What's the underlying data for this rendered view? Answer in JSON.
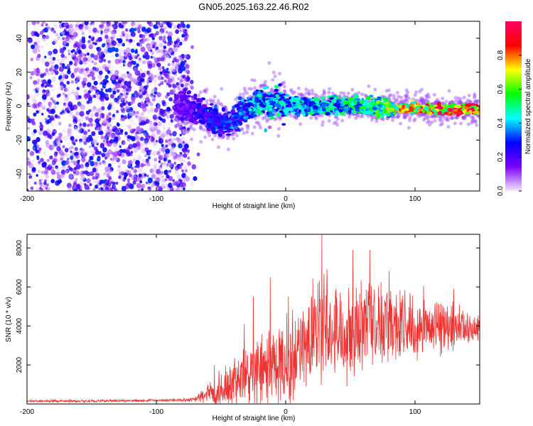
{
  "title": "GN05.2025.163.22.46.R02",
  "chart_data": [
    {
      "type": "heatmap",
      "xlabel": "Height of straight line (km)",
      "ylabel": "Frequency (Hz)",
      "xlim": [
        -200,
        150
      ],
      "ylim": [
        -50,
        50
      ],
      "xticks": [
        -200,
        -100,
        0,
        100
      ],
      "yticks": [
        -40,
        -20,
        0,
        20,
        40
      ],
      "colorbar": {
        "label": "Normalized spectral amplitude",
        "range": [
          0,
          1
        ],
        "ticks": [
          0.0,
          0.2,
          0.4,
          0.6,
          0.8
        ],
        "tick_labels": [
          "0.0",
          "0.2",
          "0.4",
          "0.6",
          "0.8"
        ],
        "colors": [
          "#f2e6ff",
          "#7a00ff",
          "#0000ff",
          "#00ffff",
          "#00ff00",
          "#ffff00",
          "#ff0000",
          "#ff0066"
        ]
      },
      "noise_region": {
        "x": [
          -200,
          -75
        ],
        "y": [
          -50,
          50
        ],
        "amplitude": 0.25
      },
      "ridge": {
        "x": [
          -85,
          -75,
          -65,
          -55,
          -48,
          -42,
          -35,
          -28,
          -20,
          -10,
          0,
          10,
          20,
          40,
          60,
          80,
          100,
          120,
          140,
          150
        ],
        "freq": [
          0,
          -1,
          -4,
          -8,
          -10,
          -9,
          -4,
          0,
          3,
          2,
          1,
          0,
          0,
          0,
          0,
          -1,
          -1,
          -2,
          -2,
          -2
        ],
        "amplitude": [
          0.15,
          0.2,
          0.25,
          0.28,
          0.3,
          0.3,
          0.32,
          0.38,
          0.42,
          0.42,
          0.4,
          0.4,
          0.42,
          0.45,
          0.48,
          0.6,
          0.75,
          0.85,
          0.95,
          0.95
        ]
      }
    },
    {
      "type": "line",
      "xlabel": "Height of straight line (km)",
      "ylabel": "SNR (10 * v/v)",
      "xlim": [
        -200,
        150
      ],
      "ylim": [
        0,
        8700
      ],
      "xticks": [
        -200,
        -100,
        0,
        100
      ],
      "yticks": [
        2000,
        4000,
        6000,
        8000
      ],
      "color": "#ee3333",
      "envelope": {
        "x": [
          -200,
          -150,
          -100,
          -80,
          -70,
          -60,
          -50,
          -40,
          -30,
          -20,
          -10,
          0,
          10,
          20,
          25,
          30,
          40,
          50,
          60,
          70,
          80,
          100,
          120,
          140,
          150
        ],
        "mean": [
          150,
          150,
          180,
          200,
          250,
          500,
          800,
          1100,
          1400,
          1600,
          1800,
          2200,
          2600,
          3400,
          3700,
          3900,
          3900,
          3900,
          4100,
          4300,
          4200,
          4100,
          4000,
          3900,
          3800
        ],
        "spread": [
          100,
          100,
          100,
          100,
          200,
          900,
          1500,
          2000,
          2400,
          2600,
          2900,
          3300,
          3400,
          3500,
          3800,
          3700,
          3500,
          3400,
          3400,
          3300,
          3000,
          2400,
          1800,
          1300,
          1000
        ]
      },
      "peaks": [
        {
          "x": -55,
          "y": 2000
        },
        {
          "x": -32,
          "y": 4100
        },
        {
          "x": -25,
          "y": 5500
        },
        {
          "x": -12,
          "y": 6500
        },
        {
          "x": 2,
          "y": 5500
        },
        {
          "x": 20,
          "y": 5500
        },
        {
          "x": 28,
          "y": 8700
        },
        {
          "x": 32,
          "y": 6900
        },
        {
          "x": 52,
          "y": 7900
        },
        {
          "x": 65,
          "y": 7900
        },
        {
          "x": 80,
          "y": 6800
        },
        {
          "x": 130,
          "y": 5900
        }
      ]
    }
  ]
}
